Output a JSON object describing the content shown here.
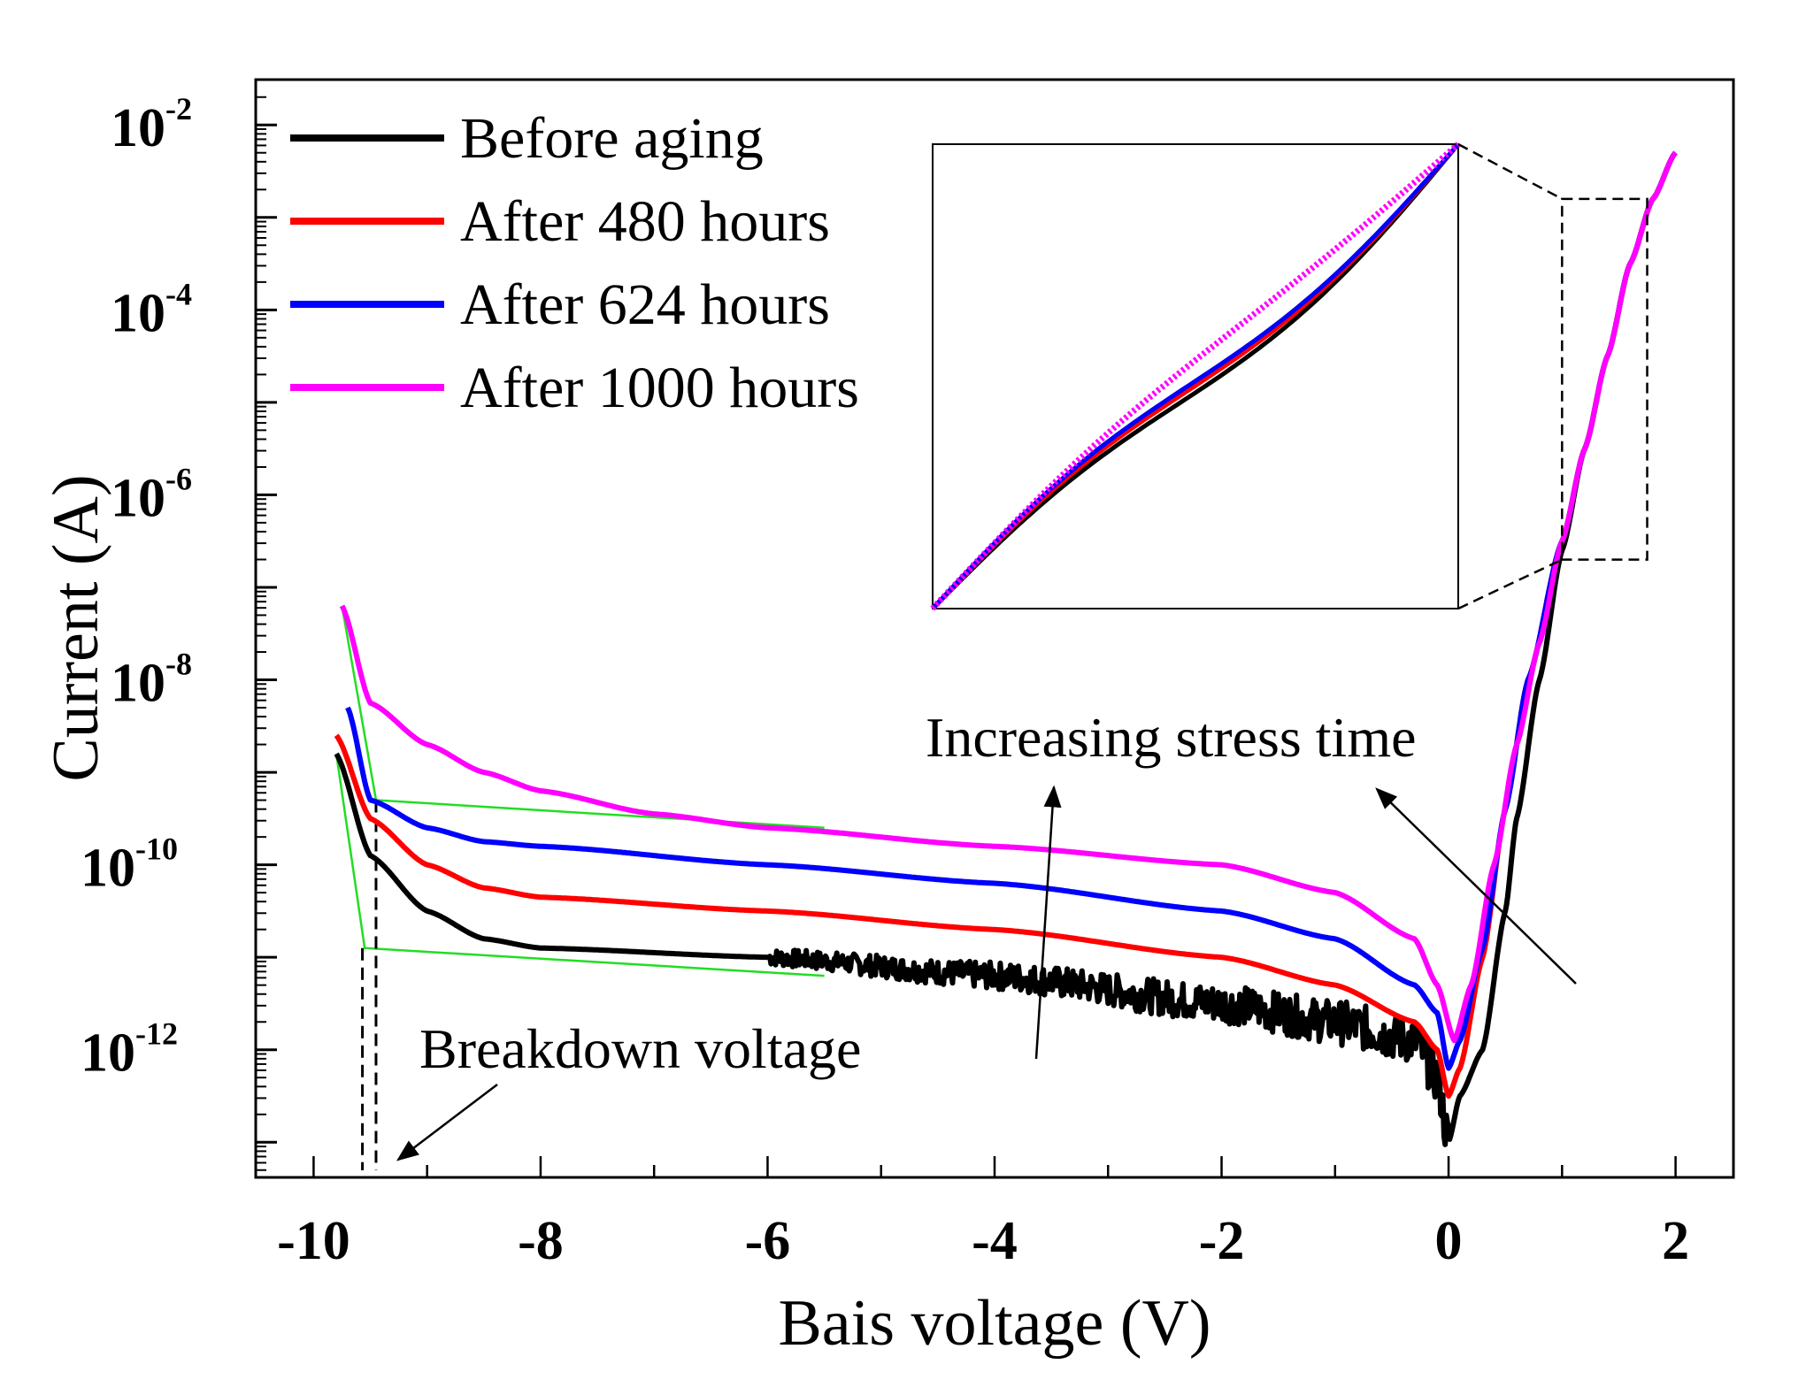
{
  "chart_data": {
    "type": "line",
    "title": "",
    "xlabel": "Bais voltage (V)",
    "ylabel": "Current (A)",
    "xlim": [
      -10.51,
      2.51
    ],
    "ylim_log10": [
      -13.38,
      -1.51
    ],
    "yscale": "log",
    "grid": false,
    "legend_placement": "top-left",
    "x_ticks": [
      "-10",
      "-8",
      "-6",
      "-4",
      "-2",
      "0",
      "2"
    ],
    "x_tick_values": [
      -10,
      -8,
      -6,
      -4,
      -2,
      0,
      2
    ],
    "y_ticks": [
      {
        "base": "10",
        "exp": "-2",
        "value": -2
      },
      {
        "base": "10",
        "exp": "-4",
        "value": -4
      },
      {
        "base": "10",
        "exp": "-6",
        "value": -6
      },
      {
        "base": "10",
        "exp": "-8",
        "value": -8
      },
      {
        "base": "10",
        "exp": "-10",
        "value": -10
      },
      {
        "base": "10",
        "exp": "-12",
        "value": -12
      }
    ],
    "series": [
      {
        "name": "Before aging",
        "color": "#000000",
        "noisy": true,
        "x": [
          -9.8,
          -9.5,
          -9.0,
          -8.5,
          -8.0,
          -6.0,
          -4.0,
          -2.0,
          -1.0,
          -0.3,
          -0.1,
          0.0,
          0.1,
          0.3,
          0.5,
          0.6,
          0.8,
          1.0,
          1.2,
          1.4,
          1.6,
          1.8,
          2.0
        ],
        "log10_current": [
          -8.8,
          -9.9,
          -10.5,
          -10.8,
          -10.9,
          -11.0,
          -11.2,
          -11.5,
          -11.7,
          -11.9,
          -12.3,
          -13.0,
          -12.5,
          -12.0,
          -10.5,
          -9.5,
          -8.0,
          -6.6,
          -5.5,
          -4.5,
          -3.5,
          -2.8,
          -2.3
        ]
      },
      {
        "name": "After 480 hours",
        "color": "#ff0000",
        "x": [
          -9.8,
          -9.5,
          -9.0,
          -8.5,
          -8.0,
          -6.0,
          -4.0,
          -2.0,
          -1.0,
          -0.3,
          -0.1,
          0.0,
          0.1,
          0.3,
          0.5,
          0.7,
          1.0,
          1.2,
          1.4,
          1.6,
          1.8,
          2.0
        ],
        "log10_current": [
          -8.6,
          -9.5,
          -10.0,
          -10.25,
          -10.35,
          -10.5,
          -10.7,
          -11.0,
          -11.3,
          -11.7,
          -12.0,
          -12.5,
          -12.2,
          -11.0,
          -9.4,
          -8.0,
          -6.5,
          -5.5,
          -4.5,
          -3.5,
          -2.8,
          -2.3
        ]
      },
      {
        "name": "After 624 hours",
        "color": "#0000ff",
        "x": [
          -9.7,
          -9.5,
          -9.0,
          -8.5,
          -8.0,
          -6.0,
          -4.0,
          -2.0,
          -1.0,
          -0.3,
          -0.1,
          0.0,
          0.1,
          0.3,
          0.5,
          0.7,
          1.0,
          1.2,
          1.4,
          1.6,
          1.8,
          2.0
        ],
        "log10_current": [
          -8.3,
          -9.3,
          -9.6,
          -9.75,
          -9.8,
          -10.0,
          -10.2,
          -10.5,
          -10.8,
          -11.3,
          -11.6,
          -12.2,
          -11.9,
          -10.9,
          -9.4,
          -8.0,
          -6.5,
          -5.5,
          -4.5,
          -3.5,
          -2.8,
          -2.3
        ]
      },
      {
        "name": "After 1000 hours",
        "color": "#ff00ff",
        "x": [
          -9.75,
          -9.5,
          -9.0,
          -8.5,
          -8.0,
          -7.0,
          -6.0,
          -4.0,
          -2.0,
          -1.0,
          -0.3,
          -0.1,
          0.05,
          0.2,
          0.4,
          0.6,
          0.8,
          1.0,
          1.2,
          1.4,
          1.6,
          1.8,
          2.0
        ],
        "log10_current": [
          -7.2,
          -8.25,
          -8.7,
          -9.0,
          -9.2,
          -9.45,
          -9.6,
          -9.8,
          -10.0,
          -10.3,
          -10.8,
          -11.3,
          -11.9,
          -11.3,
          -10.0,
          -8.7,
          -7.6,
          -6.5,
          -5.5,
          -4.5,
          -3.5,
          -2.8,
          -2.3
        ]
      }
    ],
    "annotations": {
      "stress": "Increasing stress time",
      "breakdown": "Breakdown voltage"
    },
    "inset": {
      "description_shown": false,
      "zoom_x_range": [
        1.0,
        1.75
      ],
      "zoom_log10_range": [
        -6.7,
        -2.8
      ]
    }
  }
}
